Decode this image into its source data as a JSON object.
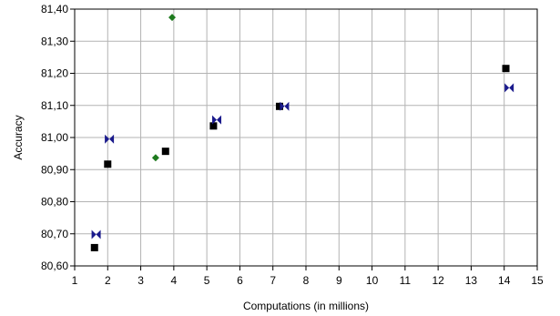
{
  "chart_data": {
    "type": "scatter",
    "xlabel": "Computations (in millions)",
    "ylabel": "Accuracy",
    "xlim": [
      1,
      15
    ],
    "ylim": [
      80.6,
      81.4
    ],
    "x_ticks": [
      "1",
      "2",
      "3",
      "4",
      "5",
      "6",
      "7",
      "8",
      "9",
      "10",
      "11",
      "12",
      "13",
      "14",
      "15"
    ],
    "y_ticks": [
      "80,60",
      "80,70",
      "80,80",
      "80,90",
      "81,00",
      "81,10",
      "81,20",
      "81,30",
      "81,40"
    ],
    "grid": true,
    "series": [
      {
        "marker": "square",
        "color": "#000000",
        "points": [
          {
            "x": 1.6,
            "y": 80.657
          },
          {
            "x": 2.0,
            "y": 80.917
          },
          {
            "x": 3.75,
            "y": 80.957
          },
          {
            "x": 5.2,
            "y": 81.036
          },
          {
            "x": 7.2,
            "y": 81.097
          },
          {
            "x": 14.05,
            "y": 81.215
          }
        ]
      },
      {
        "marker": "bowtie",
        "color": "#1a1a8c",
        "points": [
          {
            "x": 1.65,
            "y": 80.698
          },
          {
            "x": 2.05,
            "y": 80.995
          },
          {
            "x": 5.3,
            "y": 81.055
          },
          {
            "x": 7.35,
            "y": 81.097
          },
          {
            "x": 14.15,
            "y": 81.155
          }
        ]
      },
      {
        "marker": "diamond",
        "color": "#1e7a1e",
        "points": [
          {
            "x": 3.45,
            "y": 80.937
          },
          {
            "x": 3.95,
            "y": 81.374
          }
        ]
      }
    ]
  }
}
